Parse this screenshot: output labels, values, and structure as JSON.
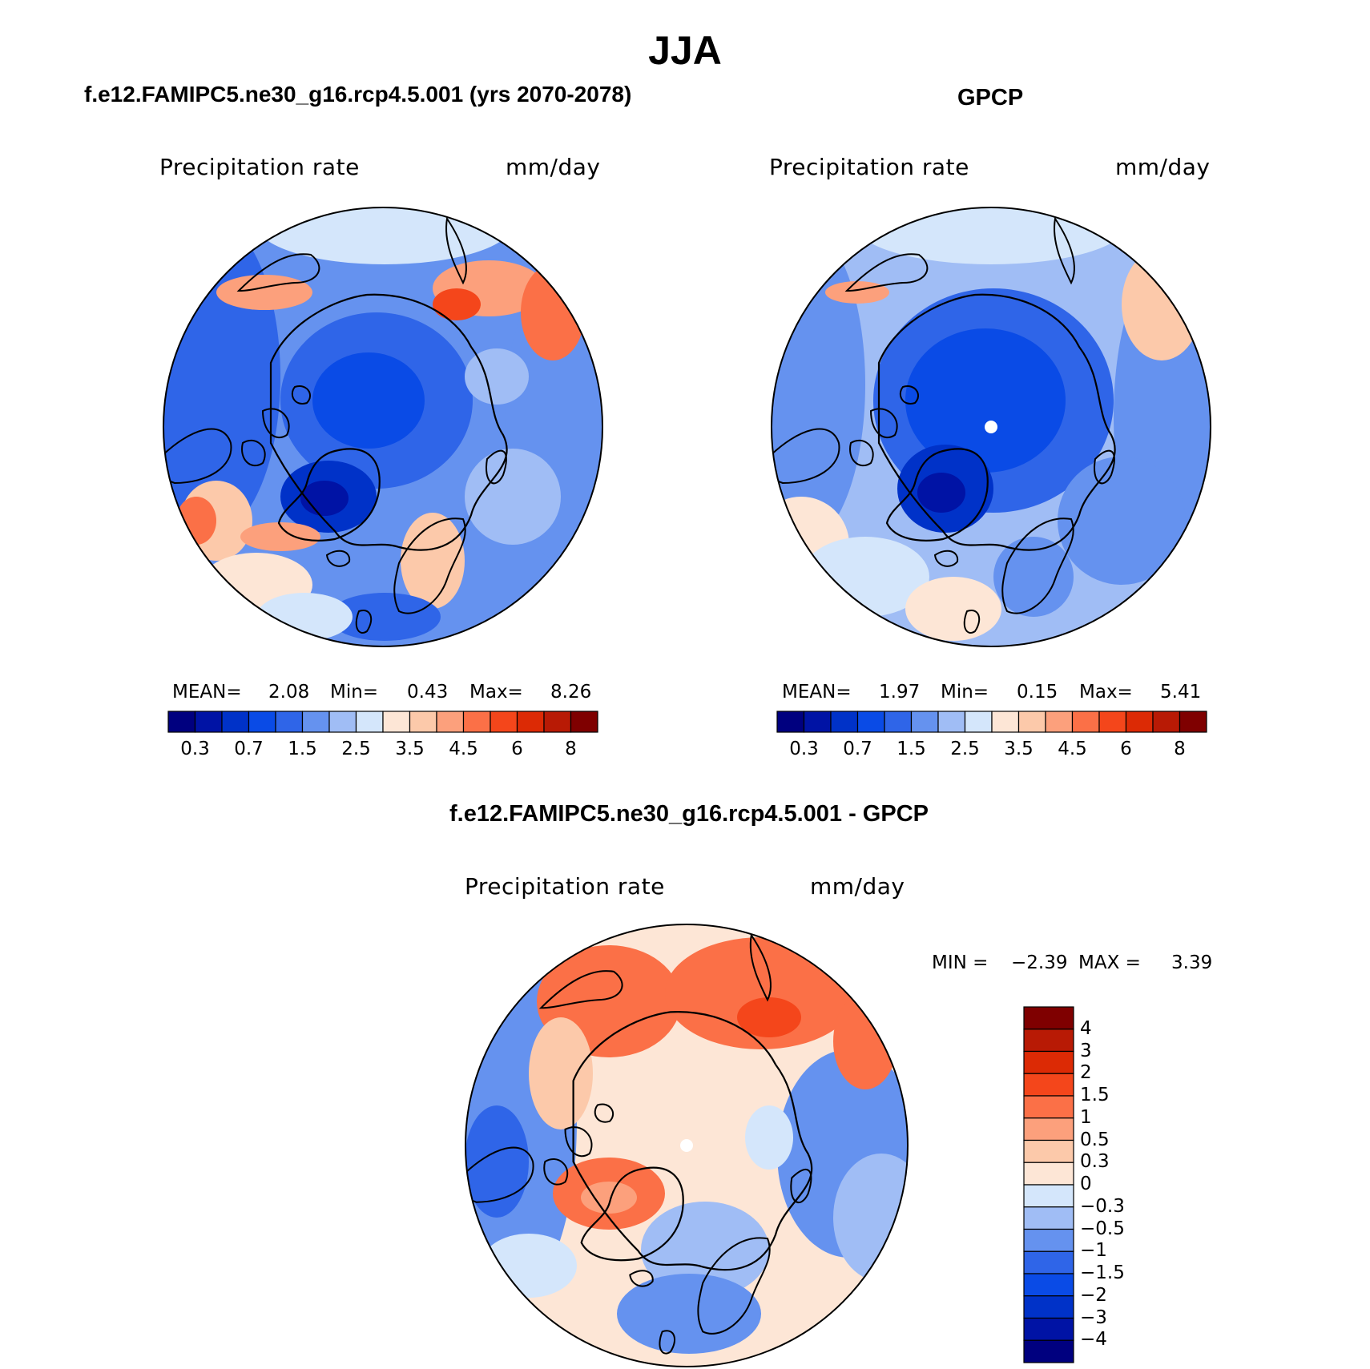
{
  "title": "JJA",
  "panels": [
    {
      "id": "model",
      "title": "f.e12.FAMIPC5.ne30_g16.rcp4.5.001 (yrs 2070-2078)",
      "variable": "Precipitation  rate",
      "units": "mm/day",
      "stats": {
        "mean_label": "MEAN=",
        "mean": "2.08",
        "min_label": "Min=",
        "min": "0.43",
        "max_label": "Max=",
        "max": "8.26"
      }
    },
    {
      "id": "obs",
      "title": "GPCP",
      "variable": "Precipitation  rate",
      "units": "mm/day",
      "stats": {
        "mean_label": "MEAN=",
        "mean": "1.97",
        "min_label": "Min=",
        "min": "0.15",
        "max_label": "Max=",
        "max": "5.41"
      }
    }
  ],
  "difference": {
    "title": "f.e12.FAMIPC5.ne30_g16.rcp4.5.001 - GPCP",
    "variable": "Precipitation  rate",
    "units": "mm/day",
    "min_label": "MIN =",
    "min": "−2.39",
    "max_label": "MAX =",
    "max": "3.39"
  },
  "colorbars": {
    "abs_colors": [
      "#00007f",
      "#0013a5",
      "#0032c8",
      "#0a4be6",
      "#2f65e8",
      "#6592ef",
      "#a0bdf5",
      "#d4e6fb",
      "#fde6d6",
      "#fcc9aa",
      "#fca07c",
      "#fb7047",
      "#f4461b",
      "#dc2a05",
      "#b81a05",
      "#7f0000"
    ],
    "abs_ticks": [
      "0.3",
      "0.7",
      "1.5",
      "2.5",
      "3.5",
      "4.5",
      "6",
      "8"
    ],
    "diff_colors": [
      "#00007f",
      "#0013a5",
      "#0032c8",
      "#0a4be6",
      "#2f65e8",
      "#6592ef",
      "#a0bdf5",
      "#d4e6fb",
      "#fde6d6",
      "#fcc9aa",
      "#fca07c",
      "#fb7047",
      "#f4461b",
      "#dc2a05",
      "#b81a05",
      "#7f0000"
    ],
    "diff_ticks": [
      "4",
      "3",
      "2",
      "1.5",
      "1",
      "0.5",
      "0.3",
      "0",
      "−0.3",
      "−0.5",
      "−1",
      "−1.5",
      "−2",
      "−3",
      "−4"
    ]
  }
}
